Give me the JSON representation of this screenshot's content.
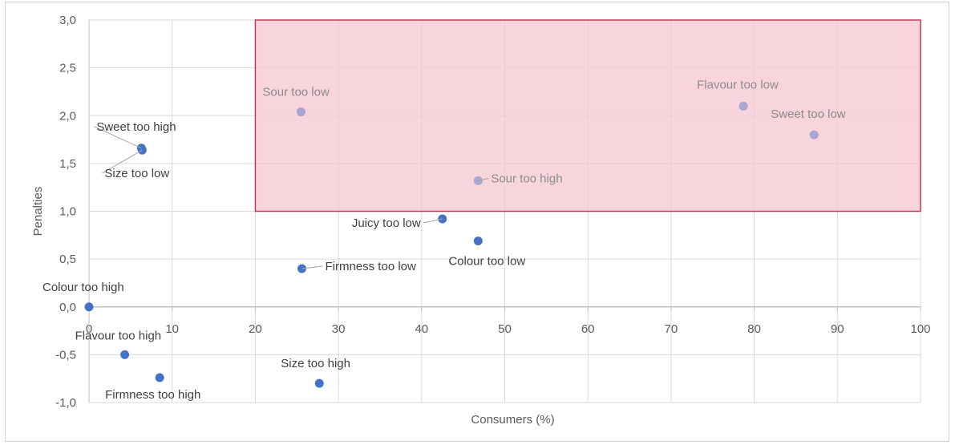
{
  "chart_data": {
    "type": "scatter",
    "xlabel": "Consumers (%)",
    "ylabel": "Penalties",
    "xlim": [
      0,
      100
    ],
    "ylim": [
      -1.0,
      3.0
    ],
    "x_ticks": [
      "0",
      "10",
      "20",
      "30",
      "40",
      "50",
      "60",
      "70",
      "80",
      "90",
      "100"
    ],
    "y_ticks": [
      "-1,0",
      "-0,5",
      "0,0",
      "0,5",
      "1,0",
      "1,5",
      "2,0",
      "2,5",
      "3,0"
    ],
    "grid": true,
    "highlight_zone": {
      "x": [
        20,
        100
      ],
      "y": [
        1.0,
        3.0
      ],
      "fill": "#f5c6d0",
      "stroke": "#c8385a"
    },
    "point_color": "#4472c4",
    "points": [
      {
        "label": "Sweet too high",
        "x": 6.3,
        "y": 1.66
      },
      {
        "label": "Size too low",
        "x": 6.4,
        "y": 1.64
      },
      {
        "label": "Sour too low",
        "x": 25.5,
        "y": 2.04
      },
      {
        "label": "Flavour too low",
        "x": 78.7,
        "y": 2.1
      },
      {
        "label": "Sweet too low",
        "x": 87.2,
        "y": 1.8
      },
      {
        "label": "Sour too high",
        "x": 46.8,
        "y": 1.32
      },
      {
        "label": "Juicy too low",
        "x": 42.5,
        "y": 0.92
      },
      {
        "label": "Colour too low",
        "x": 46.8,
        "y": 0.69
      },
      {
        "label": "Firmness too low",
        "x": 25.6,
        "y": 0.4
      },
      {
        "label": "Colour too high",
        "x": 0.0,
        "y": 0.0
      },
      {
        "label": "Flavour too high",
        "x": 4.3,
        "y": -0.5
      },
      {
        "label": "Firmness too high",
        "x": 8.5,
        "y": -0.74
      },
      {
        "label": "Size too high",
        "x": 27.7,
        "y": -0.8
      }
    ]
  }
}
